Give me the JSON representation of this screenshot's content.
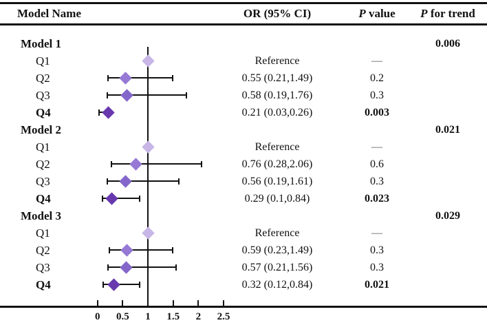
{
  "header": {
    "model_name": "Model Name",
    "or_ci": "OR (95% CI)",
    "p_italic": "P",
    "p_value_rest": " value",
    "p_trend_italic": "P",
    "p_trend_rest": " for trend"
  },
  "colors": {
    "q1": "#c7b6e6",
    "q2": "#9579d5",
    "q3": "#8466ca",
    "q4": "#6839ae",
    "line": "#111111",
    "dash": "#555555"
  },
  "chart_data": {
    "type": "scatter",
    "subtype": "forest-plot",
    "x_axis": {
      "ticks": [
        "0",
        "0.5",
        "1",
        "1.5",
        "2",
        "2.5"
      ],
      "tick_values": [
        0,
        0.5,
        1,
        1.5,
        2,
        2.5
      ],
      "range": [
        0,
        2.5
      ],
      "reference_line": 1
    },
    "groups": [
      {
        "label": "Model 1",
        "p_for_trend": "0.006",
        "rows": [
          {
            "label": "Q1",
            "quartile": 1,
            "or": 1,
            "ci_low": null,
            "ci_high": null,
            "or_text": "Reference",
            "p_text": "—",
            "bold": false
          },
          {
            "label": "Q2",
            "quartile": 2,
            "or": 0.55,
            "ci_low": 0.21,
            "ci_high": 1.49,
            "or_text": "0.55 (0.21,1.49)",
            "p_text": "0.2",
            "bold": false
          },
          {
            "label": "Q3",
            "quartile": 3,
            "or": 0.58,
            "ci_low": 0.19,
            "ci_high": 1.76,
            "or_text": "0.58 (0.19,1.76)",
            "p_text": "0.3",
            "bold": false
          },
          {
            "label": "Q4",
            "quartile": 4,
            "or": 0.21,
            "ci_low": 0.03,
            "ci_high": 0.26,
            "or_text": "0.21 (0.03,0.26)",
            "p_text": "0.003",
            "bold": true
          }
        ]
      },
      {
        "label": "Model 2",
        "p_for_trend": "0.021",
        "rows": [
          {
            "label": "Q1",
            "quartile": 1,
            "or": 1,
            "ci_low": null,
            "ci_high": null,
            "or_text": "Reference",
            "p_text": "—",
            "bold": false
          },
          {
            "label": "Q2",
            "quartile": 2,
            "or": 0.76,
            "ci_low": 0.28,
            "ci_high": 2.06,
            "or_text": "0.76 (0.28,2.06)",
            "p_text": "0.6",
            "bold": false
          },
          {
            "label": "Q3",
            "quartile": 3,
            "or": 0.56,
            "ci_low": 0.19,
            "ci_high": 1.61,
            "or_text": "0.56 (0.19,1.61)",
            "p_text": "0.3",
            "bold": false
          },
          {
            "label": "Q4",
            "quartile": 4,
            "or": 0.29,
            "ci_low": 0.1,
            "ci_high": 0.84,
            "or_text": "0.29 (0.1,0.84)",
            "p_text": "0.023",
            "bold": true
          }
        ]
      },
      {
        "label": "Model 3",
        "p_for_trend": "0.029",
        "rows": [
          {
            "label": "Q1",
            "quartile": 1,
            "or": 1,
            "ci_low": null,
            "ci_high": null,
            "or_text": "Reference",
            "p_text": "—",
            "bold": false
          },
          {
            "label": "Q2",
            "quartile": 2,
            "or": 0.59,
            "ci_low": 0.23,
            "ci_high": 1.49,
            "or_text": "0.59 (0.23,1.49)",
            "p_text": "0.3",
            "bold": false
          },
          {
            "label": "Q3",
            "quartile": 3,
            "or": 0.57,
            "ci_low": 0.21,
            "ci_high": 1.56,
            "or_text": "0.57 (0.21,1.56)",
            "p_text": "0.3",
            "bold": false
          },
          {
            "label": "Q4",
            "quartile": 4,
            "or": 0.32,
            "ci_low": 0.12,
            "ci_high": 0.84,
            "or_text": "0.32 (0.12,0.84)",
            "p_text": "0.021",
            "bold": true
          }
        ]
      }
    ]
  }
}
